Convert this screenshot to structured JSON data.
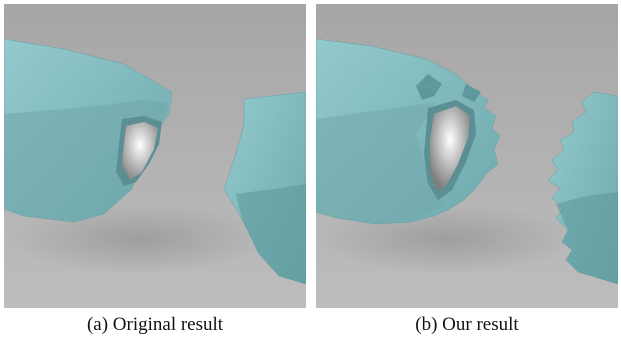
{
  "figure": {
    "panels": [
      {
        "caption": "(a)  Original result",
        "image": "mesh-fracture-render-original"
      },
      {
        "caption": "(b)  Our result",
        "image": "mesh-fracture-render-ours"
      }
    ],
    "colors": {
      "background": "#a9a9a9",
      "mesh": "#8fc5c8",
      "mesh_shadow": "#5f9ea2",
      "interior": "#f2f2f2"
    }
  }
}
